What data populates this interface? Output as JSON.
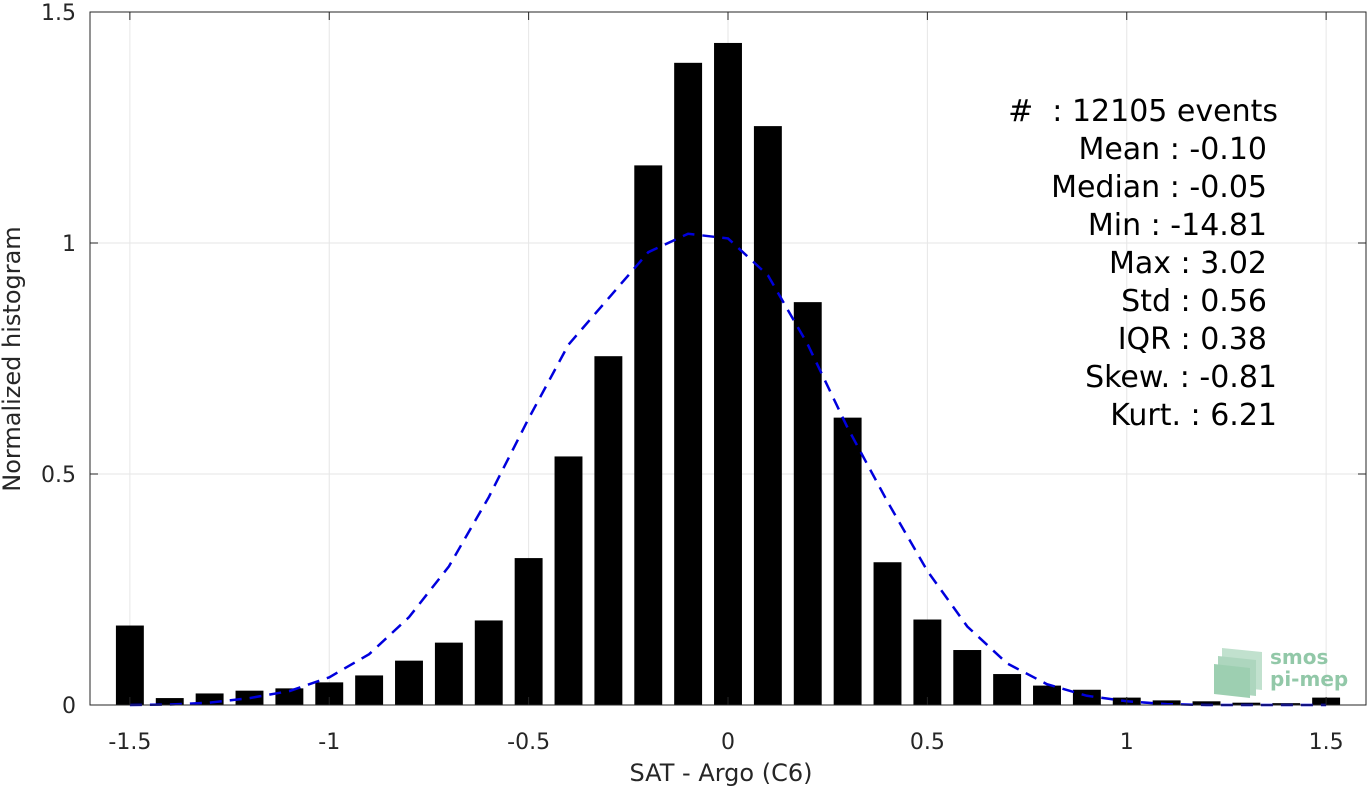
{
  "chart_data": {
    "type": "bar",
    "xlabel": "SAT - Argo (C6)",
    "ylabel": "Normalized histogram",
    "xlim": [
      -1.6,
      1.6
    ],
    "ylim": [
      0,
      1.5
    ],
    "x_ticks": [
      -1.5,
      -1,
      -0.5,
      0,
      0.5,
      1,
      1.5
    ],
    "x_tick_labels": [
      "-1.5",
      "-1",
      "-0.5",
      "0",
      "0.5",
      "1",
      "1.5"
    ],
    "y_ticks": [
      0,
      0.5,
      1,
      1.5
    ],
    "y_tick_labels": [
      "0",
      "0.5",
      "1",
      "1.5"
    ],
    "grid": true,
    "bar_width": 0.07,
    "bars": {
      "x": [
        -1.5,
        -1.4,
        -1.3,
        -1.2,
        -1.1,
        -1.0,
        -0.9,
        -0.8,
        -0.7,
        -0.6,
        -0.5,
        -0.4,
        -0.3,
        -0.2,
        -0.1,
        0.0,
        0.1,
        0.2,
        0.3,
        0.4,
        0.5,
        0.6,
        0.7,
        0.8,
        0.9,
        1.0,
        1.1,
        1.2,
        1.3,
        1.4,
        1.5
      ],
      "values": [
        0.172,
        0.015,
        0.025,
        0.031,
        0.036,
        0.049,
        0.064,
        0.096,
        0.135,
        0.183,
        0.318,
        0.538,
        0.755,
        1.168,
        1.39,
        1.433,
        1.253,
        0.872,
        0.622,
        0.309,
        0.185,
        0.119,
        0.067,
        0.042,
        0.033,
        0.016,
        0.01,
        0.008,
        0.005,
        0.004,
        0.016
      ],
      "color": "#000000"
    },
    "fit_curve": {
      "style": "dashed",
      "color": "#0000dd",
      "x": [
        -1.5,
        -1.4,
        -1.3,
        -1.2,
        -1.1,
        -1.0,
        -0.9,
        -0.8,
        -0.7,
        -0.6,
        -0.5,
        -0.4,
        -0.3,
        -0.2,
        -0.1,
        0.0,
        0.1,
        0.2,
        0.3,
        0.4,
        0.5,
        0.6,
        0.7,
        0.8,
        0.9,
        1.0,
        1.1,
        1.2,
        1.3,
        1.4,
        1.5
      ],
      "values": [
        0.0,
        0.001,
        0.005,
        0.015,
        0.03,
        0.06,
        0.11,
        0.19,
        0.3,
        0.45,
        0.62,
        0.78,
        0.88,
        0.98,
        1.02,
        1.01,
        0.93,
        0.78,
        0.6,
        0.44,
        0.29,
        0.17,
        0.09,
        0.045,
        0.02,
        0.008,
        0.002,
        0.0,
        0.0,
        0.0,
        0.0
      ]
    },
    "annotations": [
      "#  : 12105 events",
      "Mean : -0.10",
      "Median : -0.05",
      "Min : -14.81",
      "Max : 3.02",
      "Std : 0.56",
      "IQR : 0.38",
      "Skew. : -0.81",
      "Kurt. : 6.21"
    ]
  },
  "logo": {
    "line1": "smos",
    "line2": "pi-mep",
    "color": "#7fbf9a"
  }
}
